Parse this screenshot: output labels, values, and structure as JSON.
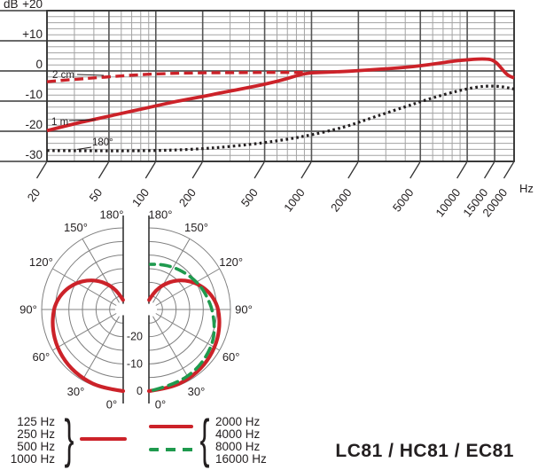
{
  "title": "LC81 / HC81 / EC81",
  "colors": {
    "red": "#cc2229",
    "green": "#1f9a4e",
    "ink": "#231f20",
    "grid_major": "#555555",
    "grid_minor": "#a3a3a3",
    "axis": "#333333",
    "polar_grid": "#808080"
  },
  "chart_data": [
    {
      "id": "frequency_response",
      "type": "line",
      "x_scale": "log",
      "xlabel": "Hz",
      "ylabel": "dB",
      "xlim": [
        20,
        20000
      ],
      "ylim": [
        -30,
        20
      ],
      "x_ticks": [
        20,
        50,
        100,
        200,
        500,
        1000,
        2000,
        5000,
        10000,
        15000,
        20000
      ],
      "x_tick_labels": [
        "20",
        "50",
        "100",
        "200",
        "500",
        "1000",
        "2000",
        "5000",
        "10000",
        "15000",
        "20000"
      ],
      "x_minor": [
        30,
        40,
        60,
        70,
        80,
        90,
        300,
        400,
        600,
        700,
        800,
        900,
        3000,
        4000,
        6000,
        7000,
        8000,
        9000
      ],
      "y_ticks": [
        20,
        10,
        0,
        -10,
        -20,
        -30
      ],
      "y_tick_labels": [
        "+20",
        "+10",
        "0",
        "-10",
        "-20",
        "-30"
      ],
      "y_minor_step": 2,
      "grid": true,
      "legend_position": "on-curve-labels",
      "series": [
        {
          "name": "2 cm",
          "color": "red",
          "style": "dashed",
          "points": [
            [
              20,
              -3.6
            ],
            [
              25,
              -3.1
            ],
            [
              32,
              -2.7
            ],
            [
              40,
              -2.3
            ],
            [
              55,
              -1.8
            ],
            [
              70,
              -1.4
            ],
            [
              90,
              -1.1
            ],
            [
              120,
              -0.85
            ],
            [
              160,
              -0.7
            ],
            [
              220,
              -0.6
            ],
            [
              320,
              -0.55
            ],
            [
              500,
              -0.5
            ],
            [
              700,
              -0.5
            ],
            [
              900,
              -0.5
            ]
          ]
        },
        {
          "name": "1 m",
          "color": "red",
          "style": "solid",
          "points": [
            [
              20,
              -19.8
            ],
            [
              30,
              -17.5
            ],
            [
              40,
              -16.1
            ],
            [
              50,
              -15.0
            ],
            [
              65,
              -13.7
            ],
            [
              80,
              -12.7
            ],
            [
              100,
              -11.6
            ],
            [
              130,
              -10.3
            ],
            [
              160,
              -9.4
            ],
            [
              200,
              -8.5
            ],
            [
              260,
              -7.3
            ],
            [
              320,
              -6.4
            ],
            [
              400,
              -5.4
            ],
            [
              500,
              -4.4
            ],
            [
              650,
              -3.0
            ],
            [
              800,
              -1.6
            ],
            [
              900,
              -0.9
            ],
            [
              1000,
              -0.6
            ],
            [
              1200,
              -0.45
            ],
            [
              1600,
              -0.2
            ],
            [
              2000,
              0.1
            ],
            [
              2600,
              0.5
            ],
            [
              3200,
              0.8
            ],
            [
              4000,
              1.2
            ],
            [
              5000,
              1.7
            ],
            [
              6300,
              2.4
            ],
            [
              8000,
              3.2
            ],
            [
              9500,
              3.6
            ],
            [
              11000,
              3.9
            ],
            [
              12500,
              4.0
            ],
            [
              14000,
              3.9
            ],
            [
              15000,
              3.2
            ],
            [
              15800,
              2.2
            ],
            [
              17000,
              0.2
            ],
            [
              18000,
              -1.2
            ],
            [
              19000,
              -1.9
            ],
            [
              20000,
              -2.3
            ]
          ]
        },
        {
          "name": "180°",
          "color": "ink",
          "style": "dotted",
          "points": [
            [
              20,
              -26.4
            ],
            [
              40,
              -26.5
            ],
            [
              70,
              -26.5
            ],
            [
              100,
              -26.4
            ],
            [
              140,
              -26.2
            ],
            [
              200,
              -25.8
            ],
            [
              280,
              -25.2
            ],
            [
              400,
              -24.4
            ],
            [
              550,
              -23.5
            ],
            [
              750,
              -22.4
            ],
            [
              1000,
              -21.2
            ],
            [
              1400,
              -19.5
            ],
            [
              1800,
              -17.9
            ],
            [
              2300,
              -16.0
            ],
            [
              3000,
              -14.0
            ],
            [
              4000,
              -11.9
            ],
            [
              5000,
              -10.2
            ],
            [
              6300,
              -8.6
            ],
            [
              8000,
              -7.1
            ],
            [
              10000,
              -5.9
            ],
            [
              12000,
              -5.2
            ],
            [
              14000,
              -5.0
            ],
            [
              16000,
              -5.1
            ],
            [
              18000,
              -5.5
            ],
            [
              20000,
              -6.0
            ]
          ]
        }
      ]
    },
    {
      "id": "polar_left",
      "type": "polar_half",
      "side": "left",
      "rings_db": [
        0,
        -5,
        -10,
        -15,
        -20,
        -25
      ],
      "scale_center_db": -30,
      "angle_step": 30,
      "angle_labels": [
        "0°",
        "30°",
        "60°",
        "90°",
        "120°",
        "150°",
        "180°"
      ],
      "series": [
        {
          "name": "125-1000 Hz",
          "color": "red",
          "style": "solid",
          "points": [
            [
              0,
              0
            ],
            [
              15,
              -0.1
            ],
            [
              30,
              -0.5
            ],
            [
              45,
              -1.1
            ],
            [
              60,
              -1.9
            ],
            [
              75,
              -3.0
            ],
            [
              90,
              -4.3
            ],
            [
              100,
              -5.8
            ],
            [
              110,
              -7.8
            ],
            [
              120,
              -10.3
            ],
            [
              130,
              -13.2
            ],
            [
              140,
              -16.3
            ],
            [
              150,
              -19.5
            ],
            [
              160,
              -22.6
            ],
            [
              170,
              -25.2
            ],
            [
              179,
              -26.5
            ]
          ]
        }
      ]
    },
    {
      "id": "polar_right",
      "type": "polar_half",
      "side": "right",
      "rings_db": [
        0,
        -5,
        -10,
        -15,
        -20,
        -25
      ],
      "scale_center_db": -30,
      "angle_step": 30,
      "angle_labels": [
        "0°",
        "30°",
        "60°",
        "90°",
        "120°",
        "150°",
        "180°"
      ],
      "radial_labels": [
        {
          "db": -20,
          "text": "-20"
        },
        {
          "db": -10,
          "text": "-10"
        },
        {
          "db": 0,
          "text": "0"
        }
      ],
      "series": [
        {
          "name": "2000-4000 Hz",
          "color": "red",
          "style": "solid",
          "points": [
            [
              0,
              0
            ],
            [
              15,
              -0.1
            ],
            [
              30,
              -0.5
            ],
            [
              45,
              -1.1
            ],
            [
              60,
              -1.9
            ],
            [
              75,
              -3.0
            ],
            [
              90,
              -4.3
            ],
            [
              100,
              -5.8
            ],
            [
              110,
              -7.8
            ],
            [
              120,
              -10.3
            ],
            [
              130,
              -13.2
            ],
            [
              140,
              -16.3
            ],
            [
              150,
              -19.5
            ],
            [
              160,
              -22.6
            ],
            [
              170,
              -25.2
            ],
            [
              179,
              -26.5
            ]
          ]
        },
        {
          "name": "8000-16000 Hz",
          "color": "green",
          "style": "dashed",
          "points": [
            [
              3,
              -0.3
            ],
            [
              20,
              -0.8
            ],
            [
              40,
              -1.7
            ],
            [
              60,
              -3.1
            ],
            [
              75,
              -4.9
            ],
            [
              90,
              -6.7
            ],
            [
              100,
              -7.9
            ],
            [
              110,
              -8.8
            ],
            [
              120,
              -9.7
            ],
            [
              135,
              -11.0
            ],
            [
              150,
              -12.0
            ],
            [
              165,
              -12.8
            ],
            [
              178,
              -13.4
            ]
          ]
        }
      ]
    }
  ],
  "legend": {
    "left": {
      "labels": [
        "125 Hz",
        "250 Hz",
        "500 Hz",
        "1000 Hz"
      ],
      "brace": "}",
      "swatch": "red-solid"
    },
    "right": {
      "labels": [
        "2000 Hz",
        "4000 Hz",
        "8000 Hz",
        "16000 Hz"
      ],
      "brace": "{",
      "swatches": [
        "red-solid",
        "green-dashed"
      ]
    }
  }
}
